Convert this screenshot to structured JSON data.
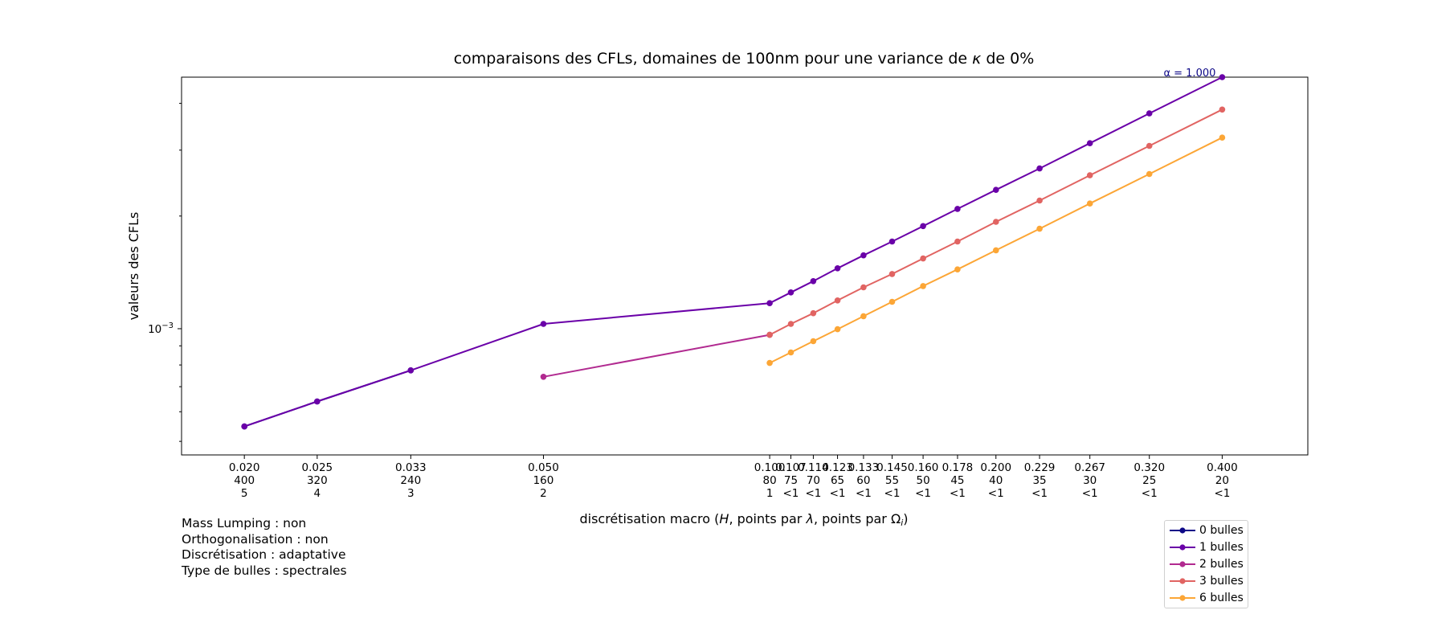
{
  "chart_data": {
    "type": "line",
    "title": "comparaisons des CFLs, domaines de 100nm pour une variance de κ de 0%",
    "title_parts": [
      "comparaisons des CFLs, domaines de 100nm pour une variance de ",
      "κ",
      " de 0%"
    ],
    "xlabel": "discrétisation macro (H, points par λ, points par Ωᵢ)",
    "xlabel_parts": [
      "discrétisation macro (",
      "H",
      ", points par ",
      "λ",
      ", points par ",
      "Ω",
      "i",
      ")"
    ],
    "ylabel": "valeurs des CFLs",
    "x_scale": "log",
    "y_scale": "log",
    "xlim": [
      0.0165,
      0.52
    ],
    "ylim": [
      0.00046,
      0.0047
    ],
    "y_ticks": [
      {
        "value": 0.001,
        "base": "10",
        "exp": "−3"
      }
    ],
    "x_ticks": [
      {
        "value": 0.02,
        "h": "0.020",
        "ppl": "400",
        "ppo": "5"
      },
      {
        "value": 0.025,
        "h": "0.025",
        "ppl": "320",
        "ppo": "4"
      },
      {
        "value": 0.0333,
        "h": "0.033",
        "ppl": "240",
        "ppo": "3"
      },
      {
        "value": 0.05,
        "h": "0.050",
        "ppl": "160",
        "ppo": "2"
      },
      {
        "value": 0.1,
        "h": "0.100",
        "ppl": "80",
        "ppo": "1"
      },
      {
        "value": 0.1067,
        "h": "0.107",
        "ppl": "75",
        "ppo": "<1"
      },
      {
        "value": 0.1143,
        "h": "0.114",
        "ppl": "70",
        "ppo": "<1"
      },
      {
        "value": 0.1231,
        "h": "0.123",
        "ppl": "65",
        "ppo": "<1"
      },
      {
        "value": 0.1333,
        "h": "0.133",
        "ppl": "60",
        "ppo": "<1"
      },
      {
        "value": 0.1455,
        "h": "0.145",
        "ppl": "55",
        "ppo": "<1"
      },
      {
        "value": 0.16,
        "h": "0.160",
        "ppl": "50",
        "ppo": "<1"
      },
      {
        "value": 0.1778,
        "h": "0.178",
        "ppl": "45",
        "ppo": "<1"
      },
      {
        "value": 0.2,
        "h": "0.200",
        "ppl": "40",
        "ppo": "<1"
      },
      {
        "value": 0.2286,
        "h": "0.229",
        "ppl": "35",
        "ppo": "<1"
      },
      {
        "value": 0.2667,
        "h": "0.267",
        "ppl": "30",
        "ppo": "<1"
      },
      {
        "value": 0.32,
        "h": "0.320",
        "ppl": "25",
        "ppo": "<1"
      },
      {
        "value": 0.4,
        "h": "0.400",
        "ppl": "20",
        "ppo": "<1"
      }
    ],
    "series": [
      {
        "name": "0 bulles",
        "color": "#0d0887",
        "x": [
          0.02,
          0.025,
          0.0333
        ],
        "y": [
          0.000548,
          0.000639,
          0.000774
        ]
      },
      {
        "name": "1 bulles",
        "color": "#6a00a8",
        "x": [
          0.02,
          0.025,
          0.0333,
          0.05,
          0.1,
          0.1067,
          0.1143,
          0.1231,
          0.1333,
          0.1455,
          0.16,
          0.1778,
          0.2,
          0.2286,
          0.2667,
          0.32,
          0.4
        ],
        "y": [
          0.000548,
          0.000639,
          0.000774,
          0.00103,
          0.00117,
          0.00125,
          0.00134,
          0.00145,
          0.00157,
          0.00171,
          0.00188,
          0.00209,
          0.00235,
          0.00268,
          0.00313,
          0.00376,
          0.0047
        ]
      },
      {
        "name": "2 bulles",
        "color": "#b12a90",
        "x": [
          0.05,
          0.1
        ],
        "y": [
          0.000744,
          0.000963
        ]
      },
      {
        "name": "3 bulles",
        "color": "#e16462",
        "x": [
          0.1,
          0.1067,
          0.1143,
          0.1231,
          0.1333,
          0.1455,
          0.16,
          0.1778,
          0.2,
          0.2286,
          0.2667,
          0.32,
          0.4
        ],
        "y": [
          0.000963,
          0.00103,
          0.0011,
          0.00119,
          0.00129,
          0.0014,
          0.00154,
          0.00171,
          0.00193,
          0.0022,
          0.00257,
          0.00308,
          0.00385
        ]
      },
      {
        "name": "6 bulles",
        "color": "#fca636",
        "x": [
          0.1,
          0.1067,
          0.1143,
          0.1231,
          0.1333,
          0.1455,
          0.16,
          0.1778,
          0.2,
          0.2286,
          0.2667,
          0.32,
          0.4
        ],
        "y": [
          0.00081,
          0.000864,
          0.000926,
          0.000997,
          0.00108,
          0.00118,
          0.0013,
          0.00144,
          0.00162,
          0.00185,
          0.00216,
          0.00259,
          0.00324
        ]
      }
    ],
    "annotation": {
      "text": "α = 1.000",
      "color": "#0d0887"
    },
    "legend_position": "lower right, below plot",
    "grid": false
  },
  "meta_lines": [
    "Mass Lumping : non",
    "Orthogonalisation : non",
    "Discrétisation : adaptative",
    "Type de bulles : spectrales"
  ]
}
